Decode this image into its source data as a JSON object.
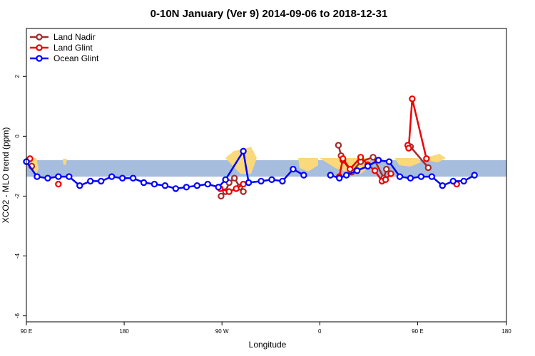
{
  "chart_data": {
    "type": "line",
    "title": "0-10N January (Ver 9)   2014-09-06 to 2018-12-31",
    "xlabel": "Longitude",
    "ylabel": "XCO2 - MLO trend (ppm)",
    "xlim": [
      -90,
      180
    ],
    "ylim": [
      -6.2,
      3.6
    ],
    "x_ticks": [
      {
        "value": -90,
        "label": "90 E"
      },
      {
        "value": -35,
        "label": "180"
      },
      {
        "value": 20,
        "label": "90 W"
      },
      {
        "value": 75,
        "label": "0"
      },
      {
        "value": 130,
        "label": "90 E"
      },
      {
        "value": 180,
        "label": "180"
      }
    ],
    "y_ticks": [
      {
        "value": 2,
        "label": "2"
      },
      {
        "value": 0,
        "label": "0"
      },
      {
        "value": -2,
        "label": "-2"
      },
      {
        "value": -4,
        "label": "-4"
      },
      {
        "value": -6,
        "label": "-6"
      }
    ],
    "band": {
      "ymin": -1.35,
      "ymax": -0.8,
      "color": "#a7bddd"
    },
    "land_color": "#f9d97a",
    "legend_position": "top-left",
    "series": [
      {
        "name": "Land Nadir",
        "color": "#a52a2a",
        "segments": [
          [
            [
              -87,
              -1.0
            ]
          ],
          [
            [
              19.5,
              -2.0
            ],
            [
              22,
              -1.85
            ],
            [
              24,
              -1.55
            ],
            [
              27,
              -1.4
            ],
            [
              30,
              -1.7
            ],
            [
              32,
              -1.85
            ]
          ],
          [
            [
              85.5,
              -0.3
            ],
            [
              87,
              -0.65
            ],
            [
              88,
              -0.8
            ],
            [
              93,
              -1.2
            ],
            [
              98,
              -0.85
            ],
            [
              105,
              -0.7
            ],
            [
              111,
              -1.4
            ],
            [
              112.5,
              -1.1
            ]
          ],
          [
            [
              126,
              -0.35
            ],
            [
              136,
              -1.05
            ]
          ]
        ]
      },
      {
        "name": "Land Glint",
        "color": "#ee0000",
        "segments": [
          [
            [
              -88,
              -0.75
            ]
          ],
          [
            [
              -72,
              -1.6
            ]
          ],
          [
            [
              19,
              -1.75
            ],
            [
              24,
              -1.85
            ],
            [
              28,
              -1.75
            ],
            [
              32,
              -1.6
            ]
          ],
          [
            [
              86,
              -1.35
            ],
            [
              88,
              -0.75
            ],
            [
              92,
              -1.1
            ],
            [
              98,
              -0.7
            ],
            [
              102,
              -0.95
            ],
            [
              106,
              -1.15
            ],
            [
              110,
              -1.5
            ],
            [
              112,
              -1.45
            ],
            [
              115,
              -1.25
            ]
          ],
          [
            [
              124.5,
              -0.3
            ],
            [
              125,
              -0.4
            ],
            [
              127,
              1.25
            ],
            [
              135,
              -0.75
            ]
          ],
          [
            [
              152,
              -1.6
            ]
          ]
        ]
      },
      {
        "name": "Ocean Glint",
        "color": "#0000ff",
        "segments": [
          [
            [
              -90,
              -0.85
            ],
            [
              -84,
              -1.35
            ],
            [
              -78,
              -1.4
            ],
            [
              -72,
              -1.35
            ],
            [
              -66,
              -1.35
            ],
            [
              -60,
              -1.65
            ],
            [
              -54,
              -1.5
            ],
            [
              -48,
              -1.5
            ],
            [
              -42,
              -1.35
            ],
            [
              -36,
              -1.4
            ],
            [
              -30,
              -1.4
            ],
            [
              -24,
              -1.55
            ],
            [
              -18,
              -1.6
            ],
            [
              -12,
              -1.65
            ],
            [
              -6,
              -1.75
            ],
            [
              0,
              -1.7
            ],
            [
              6,
              -1.65
            ],
            [
              12,
              -1.6
            ],
            [
              18,
              -1.7
            ],
            [
              22,
              -1.45
            ],
            [
              32,
              -0.5
            ],
            [
              35,
              -1.55
            ],
            [
              42,
              -1.5
            ],
            [
              48,
              -1.45
            ],
            [
              54,
              -1.5
            ],
            [
              60,
              -1.1
            ],
            [
              66,
              -1.3
            ]
          ],
          [
            [
              81,
              -1.3
            ],
            [
              86,
              -1.4
            ],
            [
              90,
              -1.3
            ],
            [
              96,
              -1.15
            ],
            [
              102,
              -1.0
            ],
            [
              108,
              -0.8
            ],
            [
              114,
              -0.85
            ],
            [
              120,
              -1.35
            ],
            [
              126,
              -1.4
            ],
            [
              132,
              -1.35
            ],
            [
              138,
              -1.35
            ],
            [
              144,
              -1.65
            ],
            [
              150,
              -1.5
            ],
            [
              156,
              -1.5
            ],
            [
              162,
              -1.3
            ]
          ]
        ]
      }
    ]
  }
}
